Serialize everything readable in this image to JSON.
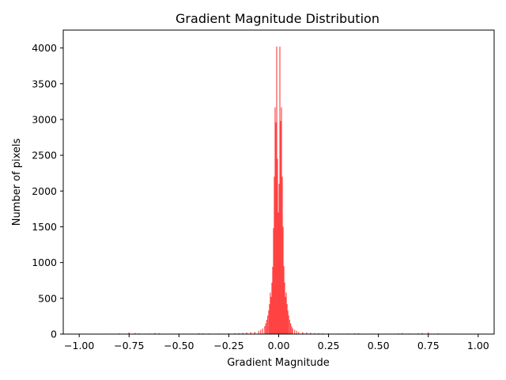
{
  "chart_data": {
    "type": "bar",
    "title": "Gradient Magnitude Distribution",
    "xlabel": "Gradient Magnitude",
    "ylabel": "Number of pixels",
    "xlim": [
      -1.08,
      1.08
    ],
    "ylim": [
      0,
      4250
    ],
    "xticks": [
      -1.0,
      -0.75,
      -0.5,
      -0.25,
      0.0,
      0.25,
      0.5,
      0.75,
      1.0
    ],
    "xtick_labels": [
      "−1.00",
      "−0.75",
      "−0.50",
      "−0.25",
      "0.00",
      "0.25",
      "0.50",
      "0.75",
      "1.00"
    ],
    "yticks": [
      0,
      500,
      1000,
      1500,
      2000,
      2500,
      3000,
      3500,
      4000
    ],
    "ytick_labels": [
      "0",
      "500",
      "1000",
      "1500",
      "2000",
      "2500",
      "3000",
      "3500",
      "4000"
    ],
    "bar_color": "#ff0000",
    "bar_opacity": 0.7,
    "grid": false,
    "legend": "none",
    "series": [
      {
        "bins": [
          {
            "x": -1.0,
            "y": 5
          },
          {
            "x": -0.95,
            "y": 4
          },
          {
            "x": -0.9,
            "y": 4
          },
          {
            "x": -0.85,
            "y": 6
          },
          {
            "x": -0.8,
            "y": 10
          },
          {
            "x": -0.75,
            "y": 22
          },
          {
            "x": -0.72,
            "y": 14
          },
          {
            "x": -0.7,
            "y": 10
          },
          {
            "x": -0.65,
            "y": 8
          },
          {
            "x": -0.62,
            "y": 14
          },
          {
            "x": -0.6,
            "y": 10
          },
          {
            "x": -0.55,
            "y": 6
          },
          {
            "x": -0.5,
            "y": 8
          },
          {
            "x": -0.45,
            "y": 6
          },
          {
            "x": -0.4,
            "y": 12
          },
          {
            "x": -0.38,
            "y": 10
          },
          {
            "x": -0.35,
            "y": 8
          },
          {
            "x": -0.3,
            "y": 8
          },
          {
            "x": -0.25,
            "y": 10
          },
          {
            "x": -0.22,
            "y": 12
          },
          {
            "x": -0.2,
            "y": 14
          },
          {
            "x": -0.18,
            "y": 16
          },
          {
            "x": -0.16,
            "y": 20
          },
          {
            "x": -0.14,
            "y": 24
          },
          {
            "x": -0.12,
            "y": 30
          },
          {
            "x": -0.1,
            "y": 45
          },
          {
            "x": -0.09,
            "y": 60
          },
          {
            "x": -0.08,
            "y": 80
          },
          {
            "x": -0.07,
            "y": 110
          },
          {
            "x": -0.065,
            "y": 150
          },
          {
            "x": -0.06,
            "y": 200
          },
          {
            "x": -0.055,
            "y": 260
          },
          {
            "x": -0.05,
            "y": 330
          },
          {
            "x": -0.046,
            "y": 420
          },
          {
            "x": -0.042,
            "y": 580
          },
          {
            "x": -0.038,
            "y": 520
          },
          {
            "x": -0.034,
            "y": 720
          },
          {
            "x": -0.03,
            "y": 940
          },
          {
            "x": -0.026,
            "y": 1480
          },
          {
            "x": -0.022,
            "y": 2200
          },
          {
            "x": -0.018,
            "y": 3170
          },
          {
            "x": -0.014,
            "y": 2960
          },
          {
            "x": -0.01,
            "y": 4020
          },
          {
            "x": -0.006,
            "y": 2450
          },
          {
            "x": -0.002,
            "y": 1700
          },
          {
            "x": 0.002,
            "y": 2100
          },
          {
            "x": 0.006,
            "y": 4020
          },
          {
            "x": 0.01,
            "y": 2980
          },
          {
            "x": 0.014,
            "y": 3170
          },
          {
            "x": 0.018,
            "y": 2200
          },
          {
            "x": 0.022,
            "y": 1500
          },
          {
            "x": 0.026,
            "y": 950
          },
          {
            "x": 0.03,
            "y": 720
          },
          {
            "x": 0.034,
            "y": 520
          },
          {
            "x": 0.038,
            "y": 580
          },
          {
            "x": 0.042,
            "y": 420
          },
          {
            "x": 0.046,
            "y": 330
          },
          {
            "x": 0.05,
            "y": 260
          },
          {
            "x": 0.055,
            "y": 200
          },
          {
            "x": 0.06,
            "y": 150
          },
          {
            "x": 0.065,
            "y": 110
          },
          {
            "x": 0.07,
            "y": 80
          },
          {
            "x": 0.08,
            "y": 60
          },
          {
            "x": 0.09,
            "y": 45
          },
          {
            "x": 0.1,
            "y": 30
          },
          {
            "x": 0.12,
            "y": 24
          },
          {
            "x": 0.14,
            "y": 20
          },
          {
            "x": 0.16,
            "y": 16
          },
          {
            "x": 0.18,
            "y": 14
          },
          {
            "x": 0.2,
            "y": 12
          },
          {
            "x": 0.22,
            "y": 10
          },
          {
            "x": 0.25,
            "y": 10
          },
          {
            "x": 0.3,
            "y": 8
          },
          {
            "x": 0.35,
            "y": 8
          },
          {
            "x": 0.38,
            "y": 10
          },
          {
            "x": 0.4,
            "y": 12
          },
          {
            "x": 0.45,
            "y": 6
          },
          {
            "x": 0.5,
            "y": 8
          },
          {
            "x": 0.55,
            "y": 6
          },
          {
            "x": 0.6,
            "y": 10
          },
          {
            "x": 0.62,
            "y": 14
          },
          {
            "x": 0.65,
            "y": 8
          },
          {
            "x": 0.7,
            "y": 10
          },
          {
            "x": 0.72,
            "y": 14
          },
          {
            "x": 0.75,
            "y": 22
          },
          {
            "x": 0.8,
            "y": 10
          },
          {
            "x": 0.85,
            "y": 6
          },
          {
            "x": 0.9,
            "y": 4
          },
          {
            "x": 0.95,
            "y": 4
          },
          {
            "x": 1.0,
            "y": 5
          }
        ]
      }
    ]
  }
}
